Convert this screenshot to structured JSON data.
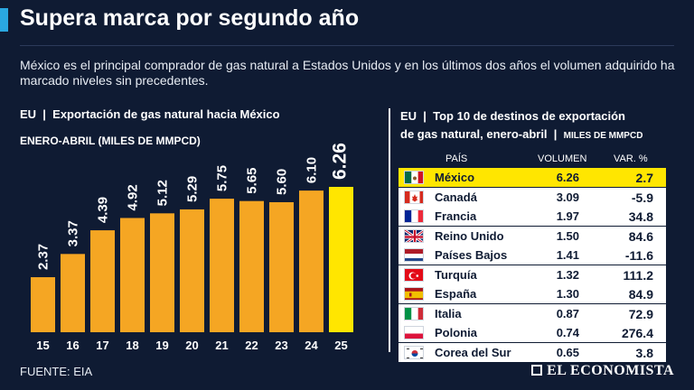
{
  "title": "Supera marca por segundo año",
  "intro": "México es el principal comprador de gas natural a Estados Unidos y en los últimos dos años el volumen adquirido ha marcado niveles sin precedentes.",
  "left": {
    "heading": "EU  |  Exportación de gas natural hacia México",
    "subheading": "ENERO-ABRIL (MILES DE MMPCD)"
  },
  "right": {
    "heading_line1": "EU  |  Top 10 de destinos de exportación",
    "heading_line2": "de gas natural, enero-abril  |  ",
    "heading_small": "MILES DE MMPCD",
    "col_pais": "PAÍS",
    "col_volumen": "VOLUMEN",
    "col_var": "VAR. %",
    "rows": [
      {
        "country": "México",
        "volumen": "6.26",
        "var": "2.7",
        "flag": "mexico-flag"
      },
      {
        "country": "Canadá",
        "volumen": "3.09",
        "var": "-5.9",
        "flag": "canada-flag"
      },
      {
        "country": "Francia",
        "volumen": "1.97",
        "var": "34.8",
        "flag": "france-flag"
      },
      {
        "country": "Reino Unido",
        "volumen": "1.50",
        "var": "84.6",
        "flag": "uk-flag"
      },
      {
        "country": "Países Bajos",
        "volumen": "1.41",
        "var": "-11.6",
        "flag": "netherlands-flag"
      },
      {
        "country": "Turquía",
        "volumen": "1.32",
        "var": "111.2",
        "flag": "turkey-flag"
      },
      {
        "country": "España",
        "volumen": "1.30",
        "var": "84.9",
        "flag": "spain-flag"
      },
      {
        "country": "Italia",
        "volumen": "0.87",
        "var": "72.9",
        "flag": "italy-flag"
      },
      {
        "country": "Polonia",
        "volumen": "0.74",
        "var": "276.4",
        "flag": "poland-flag"
      },
      {
        "country": "Corea del Sur",
        "volumen": "0.65",
        "var": "3.8",
        "flag": "korea-flag"
      }
    ]
  },
  "source": "FUENTE: EIA",
  "logo": "EL ECONOMISTA",
  "colors": {
    "background": "#0f1b33",
    "bar": "#f5a623",
    "highlight": "#ffe600",
    "accent": "#2aa7e0"
  },
  "chart_data": {
    "type": "bar",
    "title": "EU | Exportación de gas natural hacia México",
    "ylabel": "ENERO-ABRIL (MILES DE MMPCD)",
    "xlabel": "",
    "categories": [
      "15",
      "16",
      "17",
      "18",
      "19",
      "20",
      "21",
      "22",
      "23",
      "24",
      "25"
    ],
    "values": [
      2.37,
      3.37,
      4.39,
      4.92,
      5.12,
      5.29,
      5.75,
      5.65,
      5.6,
      6.1,
      6.26
    ],
    "labels": [
      "2.37",
      "3.37",
      "4.39",
      "4.92",
      "5.12",
      "5.29",
      "5.75",
      "5.65",
      "5.60",
      "6.10",
      "6.26"
    ],
    "highlight_index": 10,
    "ylim": [
      0,
      6.26
    ]
  }
}
